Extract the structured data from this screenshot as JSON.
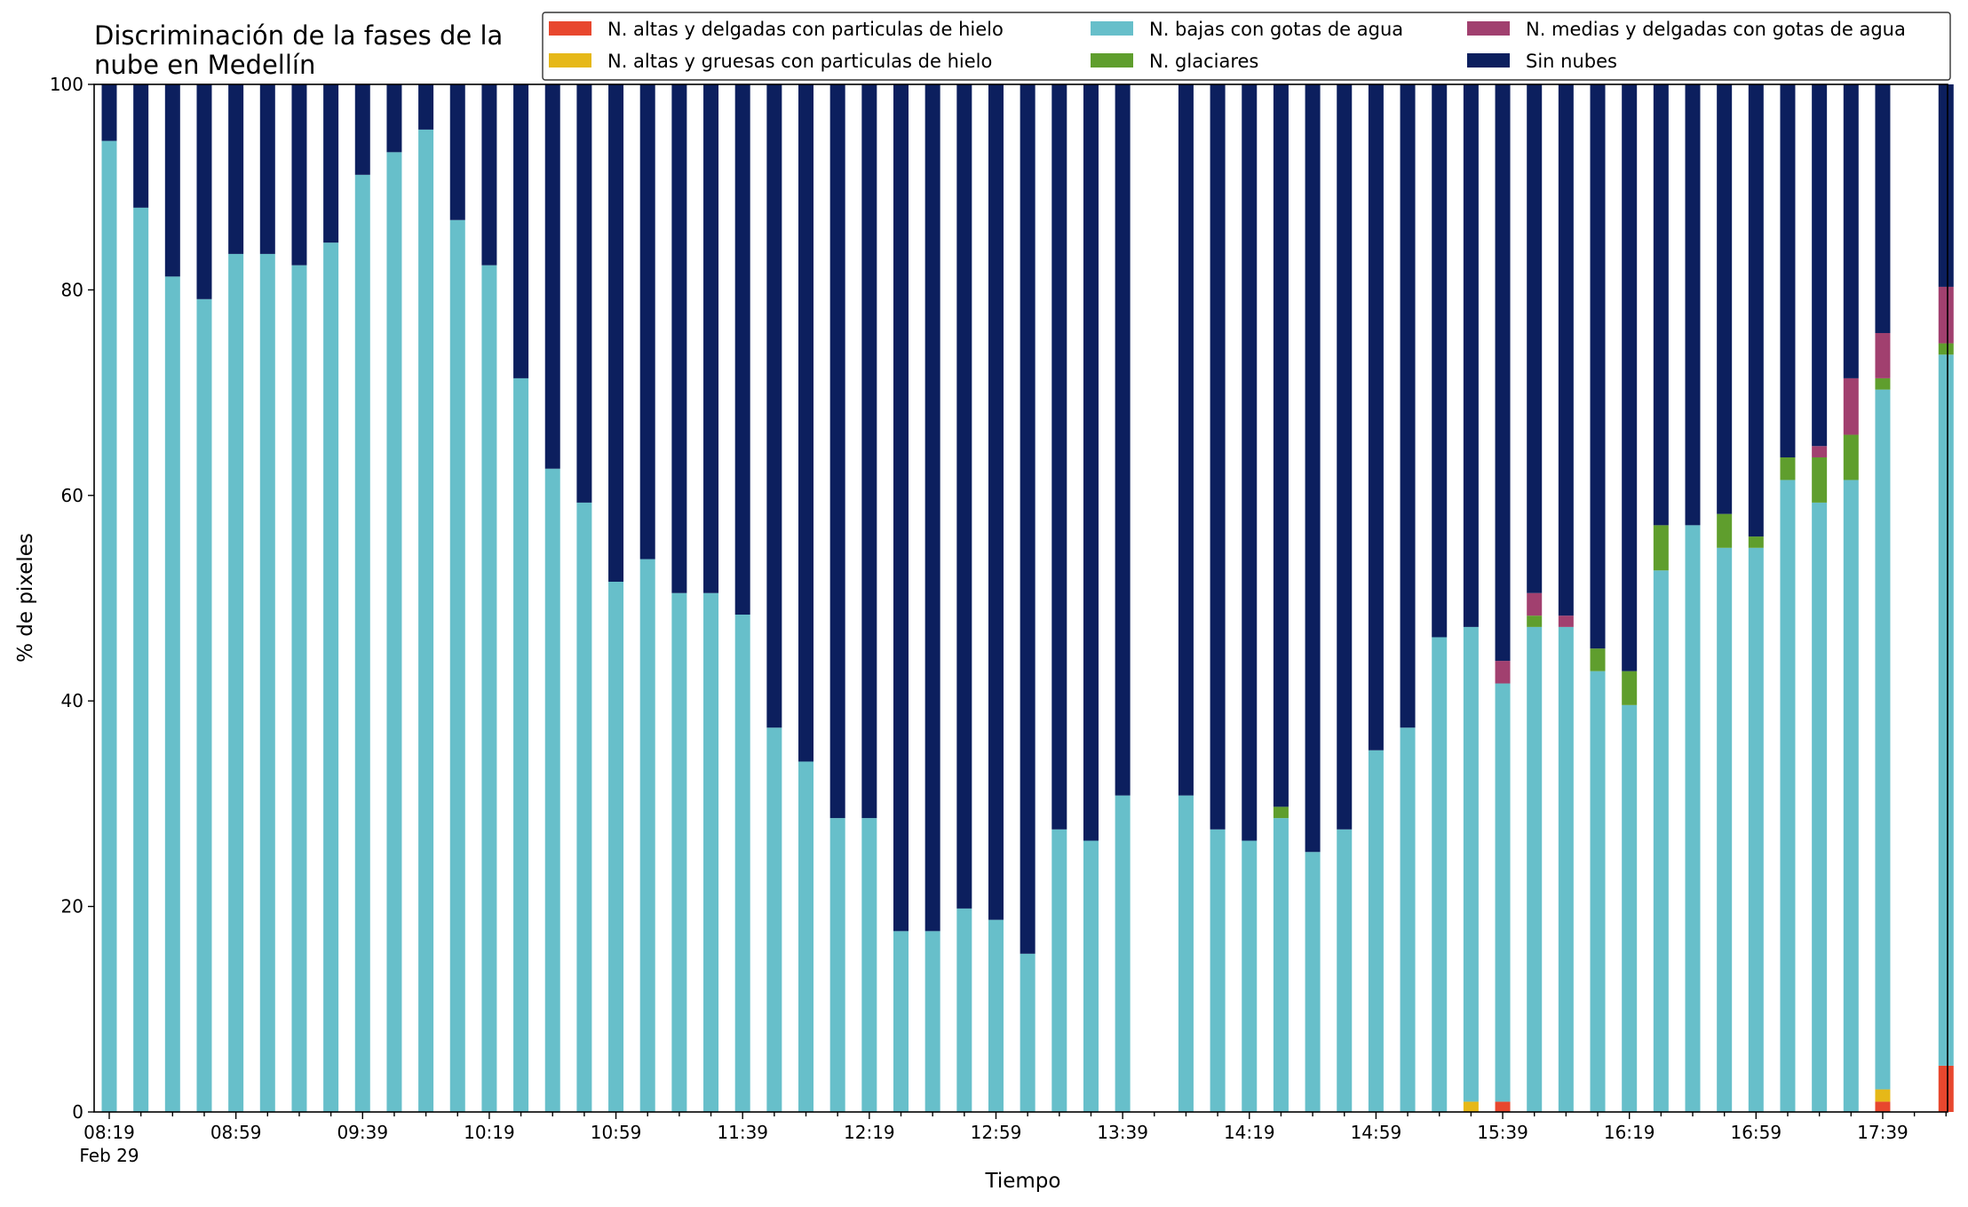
{
  "chart_data": {
    "type": "bar",
    "stacked": true,
    "title": "Discriminación de la fases de la nube en Medellín",
    "title_lines": [
      "Discriminación de la fases de la",
      "nube en Medellín"
    ],
    "xlabel": "Tiempo",
    "ylabel": "% de pixeles",
    "ylim": [
      0,
      100
    ],
    "yticks": [
      0,
      20,
      40,
      60,
      80,
      100
    ],
    "grid": false,
    "legend_position": "top-right",
    "legend_columns": 3,
    "x_tick_labels": [
      "08:19",
      "08:59",
      "09:39",
      "10:19",
      "10:59",
      "11:39",
      "12:19",
      "12:59",
      "13:39",
      "14:19",
      "14:59",
      "15:39",
      "16:19",
      "16:59",
      "17:39"
    ],
    "x_date_label": "Feb 29",
    "categories": [
      "08:19",
      "08:29",
      "08:39",
      "08:49",
      "08:59",
      "09:09",
      "09:19",
      "09:29",
      "09:39",
      "09:49",
      "09:59",
      "10:09",
      "10:19",
      "10:29",
      "10:39",
      "10:49",
      "10:59",
      "11:09",
      "11:19",
      "11:29",
      "11:39",
      "11:49",
      "11:59",
      "12:09",
      "12:19",
      "12:29",
      "12:39",
      "12:49",
      "12:59",
      "13:09",
      "13:19",
      "13:29",
      "13:39",
      "13:49",
      "13:59",
      "14:09",
      "14:19",
      "14:29",
      "14:39",
      "14:49",
      "14:59",
      "15:09",
      "15:19",
      "15:29",
      "15:39",
      "15:49",
      "15:59",
      "16:09",
      "16:19",
      "16:29",
      "16:39",
      "16:49",
      "16:59",
      "17:09",
      "17:19",
      "17:29",
      "17:39",
      "17:49",
      "17:59"
    ],
    "series": [
      {
        "name": "N. altas y delgadas con particulas de hielo",
        "color": "#e8472e",
        "values": [
          0,
          0,
          0,
          0,
          0,
          0,
          0,
          0,
          0,
          0,
          0,
          0,
          0,
          0,
          0,
          0,
          0,
          0,
          0,
          0,
          0,
          0,
          0,
          0,
          0,
          0,
          0,
          0,
          0,
          0,
          0,
          0,
          0,
          0,
          0,
          0,
          0,
          0,
          0,
          0,
          0,
          0,
          0,
          0,
          1,
          0,
          0,
          0,
          0,
          0,
          0,
          0,
          0,
          0,
          0,
          0,
          1,
          0,
          4.5
        ]
      },
      {
        "name": "N. altas y gruesas con particulas de hielo",
        "color": "#e6b818",
        "values": [
          0,
          0,
          0,
          0,
          0,
          0,
          0,
          0,
          0,
          0,
          0,
          0,
          0,
          0,
          0,
          0,
          0,
          0,
          0,
          0,
          0,
          0,
          0,
          0,
          0,
          0,
          0,
          0,
          0,
          0,
          0,
          0,
          0,
          0,
          0,
          0,
          0,
          0,
          0,
          0,
          0,
          0,
          0,
          1,
          0,
          0,
          0,
          0,
          0,
          0,
          0,
          0,
          0,
          0,
          0,
          0,
          1.2,
          0,
          0
        ]
      },
      {
        "name": "N. bajas con gotas de agua",
        "color": "#67bfca",
        "values": [
          94.5,
          88,
          81.3,
          79.1,
          83.5,
          83.5,
          82.4,
          84.6,
          91.2,
          93.4,
          95.6,
          86.8,
          82.4,
          71.4,
          62.6,
          59.3,
          51.6,
          53.8,
          50.5,
          50.5,
          48.4,
          37.4,
          34.1,
          28.6,
          28.6,
          17.6,
          17.6,
          19.8,
          18.7,
          15.4,
          27.5,
          26.4,
          30.8,
          0,
          30.8,
          27.5,
          26.4,
          28.6,
          25.3,
          27.5,
          35.2,
          37.4,
          46.2,
          46.2,
          40.7,
          47.2,
          47.2,
          42.9,
          39.6,
          52.7,
          57.1,
          54.9,
          54.9,
          61.5,
          59.3,
          61.5,
          68.1,
          0,
          69.2
        ]
      },
      {
        "name": "N. glaciares",
        "color": "#5f9e2d",
        "values": [
          0,
          0,
          0,
          0,
          0,
          0,
          0,
          0,
          0,
          0,
          0,
          0,
          0,
          0,
          0,
          0,
          0,
          0,
          0,
          0,
          0,
          0,
          0,
          0,
          0,
          0,
          0,
          0,
          0,
          0,
          0,
          0,
          0,
          0,
          0,
          0,
          0,
          1.1,
          0,
          0,
          0,
          0,
          0,
          0,
          0,
          1.1,
          0,
          2.2,
          3.3,
          4.4,
          0,
          3.3,
          1.1,
          2.2,
          4.4,
          4.4,
          1.1,
          0,
          1.1
        ]
      },
      {
        "name": "N. medias y delgadas con gotas de agua",
        "color": "#a1406f",
        "values": [
          0,
          0,
          0,
          0,
          0,
          0,
          0,
          0,
          0,
          0,
          0,
          0,
          0,
          0,
          0,
          0,
          0,
          0,
          0,
          0,
          0,
          0,
          0,
          0,
          0,
          0,
          0,
          0,
          0,
          0,
          0,
          0,
          0,
          0,
          0,
          0,
          0,
          0,
          0,
          0,
          0,
          0,
          0,
          0,
          2.2,
          2.2,
          1.1,
          0,
          0,
          0,
          0,
          0,
          0,
          0,
          1.1,
          5.5,
          4.4,
          0,
          5.5
        ]
      },
      {
        "name": "Sin nubes",
        "color": "#0c1f5e",
        "values": [
          5.5,
          12,
          18.7,
          20.9,
          16.5,
          16.5,
          17.6,
          15.4,
          8.8,
          6.6,
          4.4,
          13.2,
          17.6,
          28.6,
          37.4,
          40.7,
          48.4,
          46.2,
          49.5,
          49.5,
          51.6,
          62.6,
          65.9,
          71.4,
          71.4,
          82.4,
          82.4,
          80.2,
          81.3,
          84.6,
          72.5,
          73.6,
          69.2,
          0,
          69.2,
          72.5,
          73.6,
          70.3,
          74.7,
          72.5,
          64.8,
          62.6,
          53.8,
          52.8,
          56.1,
          49.5,
          51.7,
          54.9,
          57.1,
          42.9,
          42.9,
          41.8,
          44,
          36.3,
          35.2,
          28.6,
          24.2,
          0,
          19.7
        ]
      }
    ]
  }
}
